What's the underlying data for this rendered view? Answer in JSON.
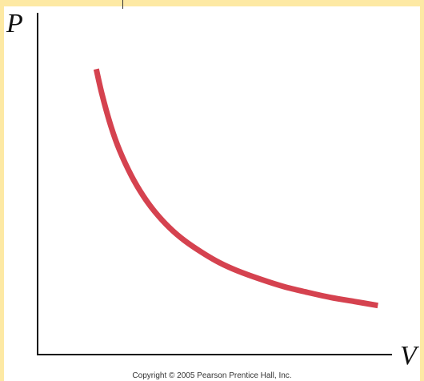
{
  "chart_data": {
    "type": "line",
    "title": "",
    "xlabel": "V",
    "ylabel": "P",
    "grid": false,
    "x_ticks": [],
    "y_ticks": [],
    "xlim": [
      0,
      6
    ],
    "ylim": [
      0,
      6
    ],
    "series": [
      {
        "color": "#d5424f",
        "x": [
          1,
          1.1,
          1.25,
          1.4,
          1.6,
          1.8,
          2.0,
          2.25,
          2.5,
          2.8,
          3.1,
          3.4,
          3.8,
          4.2,
          4.6,
          5.0,
          5.4,
          5.8
        ],
        "y": [
          5.0,
          4.55,
          4.0,
          3.57,
          3.13,
          2.78,
          2.5,
          2.22,
          2.0,
          1.79,
          1.61,
          1.47,
          1.32,
          1.19,
          1.09,
          1.0,
          0.93,
          0.86
        ]
      }
    ]
  },
  "footer": {
    "copyright": "Copyright © 2005 Pearson Prentice Hall, Inc."
  },
  "colors": {
    "border": "#fde9a4",
    "curve": "#d5424f",
    "axis": "#111111"
  }
}
